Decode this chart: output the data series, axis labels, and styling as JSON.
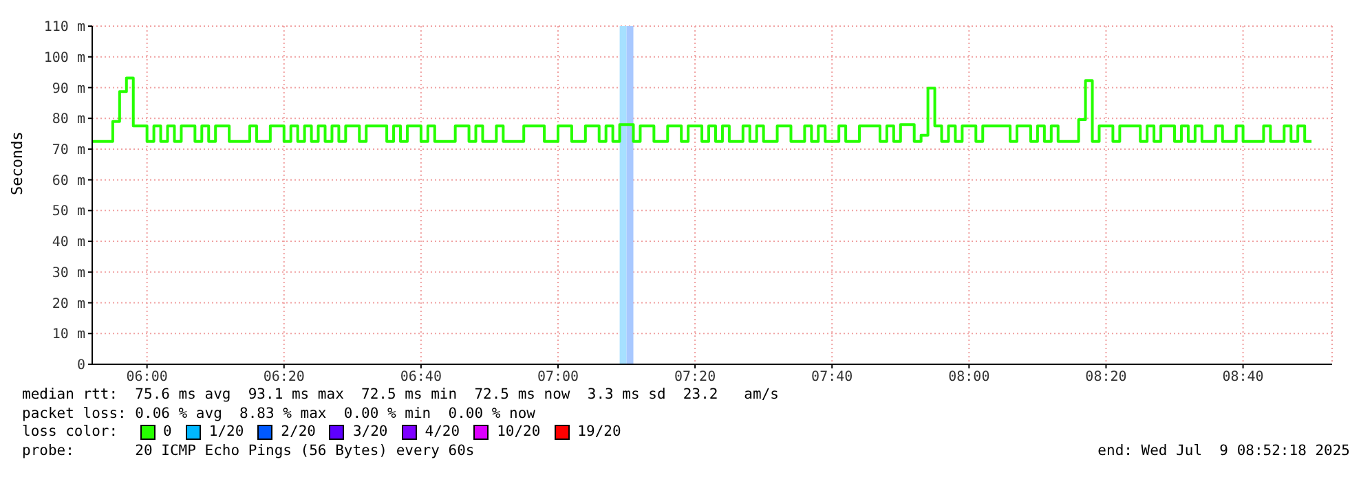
{
  "chart_data": {
    "type": "step",
    "ylabel": "Seconds",
    "legend_title": "loss color:",
    "legend": "bottom",
    "grid": true,
    "marker": "none",
    "line_style": "solid",
    "xlim": [
      "2025-07-09T05:52",
      "2025-07-09T08:53"
    ],
    "xticks": [
      {
        "value": "2025-07-09T06:00",
        "label": "06:00"
      },
      {
        "value": "2025-07-09T06:20",
        "label": "06:20"
      },
      {
        "value": "2025-07-09T06:40",
        "label": "06:40"
      },
      {
        "value": "2025-07-09T07:00",
        "label": "07:00"
      },
      {
        "value": "2025-07-09T07:20",
        "label": "07:20"
      },
      {
        "value": "2025-07-09T07:40",
        "label": "07:40"
      },
      {
        "value": "2025-07-09T08:00",
        "label": "08:00"
      },
      {
        "value": "2025-07-09T08:20",
        "label": "08:20"
      },
      {
        "value": "2025-07-09T08:40",
        "label": "08:40"
      }
    ],
    "ylim": [
      0,
      110
    ],
    "yticks": [
      0,
      {
        "value": 10,
        "label": "10 m"
      },
      {
        "value": 20,
        "label": "20 m"
      },
      {
        "value": 30,
        "label": "30 m"
      },
      {
        "value": 40,
        "label": "40 m"
      },
      {
        "value": 50,
        "label": "50 m"
      },
      {
        "value": 60,
        "label": "60 m"
      },
      {
        "value": 70,
        "label": "70 m"
      },
      {
        "value": 80,
        "label": "80 m"
      },
      {
        "value": 90,
        "label": "90 m"
      },
      {
        "value": 100,
        "label": "100 m"
      },
      {
        "value": 110,
        "label": "110 m"
      }
    ],
    "bands": [
      {
        "axis": "x",
        "from": "2025-07-09T07:09",
        "to": "2025-07-09T07:10",
        "color": "#a6e0ff"
      },
      {
        "axis": "x",
        "from": "2025-07-09T07:10",
        "to": "2025-07-09T07:11",
        "color": "#a8c8ff"
      }
    ],
    "series": [
      {
        "name": "0",
        "color": "#26ff00",
        "x": [
          "2025-07-09T05:52",
          "2025-07-09T05:55",
          "2025-07-09T05:56",
          "2025-07-09T05:57",
          "2025-07-09T05:58",
          "2025-07-09T06:00",
          "2025-07-09T06:01",
          "2025-07-09T06:02",
          "2025-07-09T06:03",
          "2025-07-09T06:04",
          "2025-07-09T06:05",
          "2025-07-09T06:07",
          "2025-07-09T06:08",
          "2025-07-09T06:09",
          "2025-07-09T06:10",
          "2025-07-09T06:12",
          "2025-07-09T06:15",
          "2025-07-09T06:16",
          "2025-07-09T06:18",
          "2025-07-09T06:20",
          "2025-07-09T06:21",
          "2025-07-09T06:22",
          "2025-07-09T06:23",
          "2025-07-09T06:24",
          "2025-07-09T06:25",
          "2025-07-09T06:26",
          "2025-07-09T06:27",
          "2025-07-09T06:28",
          "2025-07-09T06:29",
          "2025-07-09T06:31",
          "2025-07-09T06:32",
          "2025-07-09T06:35",
          "2025-07-09T06:36",
          "2025-07-09T06:37",
          "2025-07-09T06:38",
          "2025-07-09T06:40",
          "2025-07-09T06:41",
          "2025-07-09T06:42",
          "2025-07-09T06:45",
          "2025-07-09T06:47",
          "2025-07-09T06:48",
          "2025-07-09T06:49",
          "2025-07-09T06:51",
          "2025-07-09T06:52",
          "2025-07-09T06:55",
          "2025-07-09T06:58",
          "2025-07-09T07:00",
          "2025-07-09T07:02",
          "2025-07-09T07:04",
          "2025-07-09T07:06",
          "2025-07-09T07:07",
          "2025-07-09T07:08",
          "2025-07-09T07:09",
          "2025-07-09T07:11",
          "2025-07-09T07:12",
          "2025-07-09T07:14",
          "2025-07-09T07:16",
          "2025-07-09T07:18",
          "2025-07-09T07:19",
          "2025-07-09T07:21",
          "2025-07-09T07:22",
          "2025-07-09T07:23",
          "2025-07-09T07:24",
          "2025-07-09T07:25",
          "2025-07-09T07:27",
          "2025-07-09T07:28",
          "2025-07-09T07:29",
          "2025-07-09T07:30",
          "2025-07-09T07:32",
          "2025-07-09T07:34",
          "2025-07-09T07:36",
          "2025-07-09T07:37",
          "2025-07-09T07:38",
          "2025-07-09T07:39",
          "2025-07-09T07:41",
          "2025-07-09T07:42",
          "2025-07-09T07:44",
          "2025-07-09T07:47",
          "2025-07-09T07:48",
          "2025-07-09T07:49",
          "2025-07-09T07:50",
          "2025-07-09T07:52",
          "2025-07-09T07:53",
          "2025-07-09T07:54",
          "2025-07-09T07:55",
          "2025-07-09T07:56",
          "2025-07-09T07:57",
          "2025-07-09T07:58",
          "2025-07-09T07:59",
          "2025-07-09T08:01",
          "2025-07-09T08:02",
          "2025-07-09T08:06",
          "2025-07-09T08:07",
          "2025-07-09T08:09",
          "2025-07-09T08:10",
          "2025-07-09T08:11",
          "2025-07-09T08:12",
          "2025-07-09T08:13",
          "2025-07-09T08:16",
          "2025-07-09T08:17",
          "2025-07-09T08:18",
          "2025-07-09T08:19",
          "2025-07-09T08:21",
          "2025-07-09T08:22",
          "2025-07-09T08:25",
          "2025-07-09T08:26",
          "2025-07-09T08:27",
          "2025-07-09T08:28",
          "2025-07-09T08:30",
          "2025-07-09T08:31",
          "2025-07-09T08:32",
          "2025-07-09T08:33",
          "2025-07-09T08:34",
          "2025-07-09T08:36",
          "2025-07-09T08:37",
          "2025-07-09T08:39",
          "2025-07-09T08:40",
          "2025-07-09T08:43",
          "2025-07-09T08:44",
          "2025-07-09T08:46",
          "2025-07-09T08:47",
          "2025-07-09T08:48",
          "2025-07-09T08:49",
          "2025-07-09T08:50"
        ],
        "values": [
          72.5,
          79,
          88.7,
          93.1,
          77.5,
          72.5,
          77.5,
          72.5,
          77.5,
          72.5,
          77.5,
          72.5,
          77.5,
          72.5,
          77.5,
          72.5,
          77.5,
          72.5,
          77.5,
          72.5,
          77.5,
          72.5,
          77.5,
          72.5,
          77.5,
          72.5,
          77.5,
          72.5,
          77.5,
          72.5,
          77.5,
          72.5,
          77.5,
          72.5,
          77.5,
          72.5,
          77.5,
          72.5,
          77.5,
          72.5,
          77.5,
          72.5,
          77.5,
          72.5,
          77.5,
          72.5,
          77.5,
          72.5,
          77.5,
          72.5,
          77.5,
          72.5,
          78,
          72.5,
          77.5,
          72.5,
          77.5,
          72.5,
          77.5,
          72.5,
          77.5,
          72.5,
          77.5,
          72.5,
          77.5,
          72.5,
          77.5,
          72.5,
          77.5,
          72.5,
          77.5,
          72.5,
          77.5,
          72.5,
          77.5,
          72.5,
          77.5,
          72.5,
          77.5,
          72.5,
          78,
          72.5,
          74.5,
          89.8,
          77.5,
          72.5,
          77.5,
          72.5,
          77.5,
          72.5,
          77.5,
          72.5,
          77.5,
          72.5,
          77.5,
          72.5,
          77.5,
          72.5,
          79.6,
          92.3,
          72.5,
          77.5,
          72.5,
          77.5,
          72.5,
          77.5,
          72.5,
          77.5,
          72.5,
          77.5,
          72.5,
          77.5,
          72.5,
          77.5,
          72.5,
          77.5,
          72.5,
          77.5,
          72.5,
          77.5,
          72.5,
          77.5,
          72.5,
          72.5
        ]
      },
      {
        "name": "1/20",
        "color": "#00b8ff"
      },
      {
        "name": "2/20",
        "color": "#0059ff"
      },
      {
        "name": "3/20",
        "color": "#5e00ff"
      },
      {
        "name": "4/20",
        "color": "#7e00ff"
      },
      {
        "name": "10/20",
        "color": "#dd00ff"
      },
      {
        "name": "19/20",
        "color": "#ff0000"
      }
    ],
    "annotations": [
      "median rtt:  75.6 ms avg  93.1 ms max  72.5 ms min  72.5 ms now  3.3 ms sd  23.2   am/s",
      "packet loss: 0.06 % avg  8.83 % max  0.00 % min  0.00 % now",
      "probe:       20 ICMP Echo Pings (56 Bytes) every 60s",
      "end: Wed Jul  9 08:52:18 2025"
    ]
  }
}
